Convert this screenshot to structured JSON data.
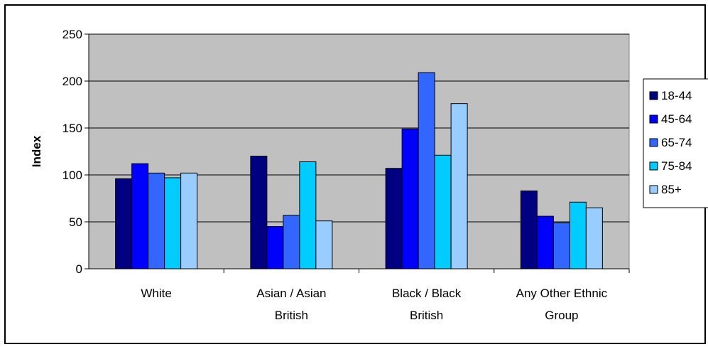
{
  "chart_data": {
    "type": "bar",
    "title": "",
    "xlabel": "",
    "ylabel": "Index",
    "ylim": [
      0,
      250
    ],
    "yticks": [
      "0",
      "50",
      "100",
      "150",
      "200",
      "250"
    ],
    "categories": [
      [
        "White"
      ],
      [
        "Asian / Asian",
        "British"
      ],
      [
        "Black / Black",
        "British"
      ],
      [
        "Any Other Ethnic",
        "Group"
      ]
    ],
    "series": [
      {
        "name": "18-44",
        "color": "#000080",
        "values": [
          96,
          120,
          107,
          83
        ]
      },
      {
        "name": "45-64",
        "color": "#0000ff",
        "values": [
          112,
          45,
          149,
          56
        ]
      },
      {
        "name": "65-74",
        "color": "#3366ff",
        "values": [
          102,
          57,
          209,
          49
        ]
      },
      {
        "name": "75-84",
        "color": "#00ccff",
        "values": [
          97,
          114,
          121,
          71
        ]
      },
      {
        "name": "85+",
        "color": "#99ccff",
        "values": [
          102,
          51,
          176,
          65
        ]
      }
    ],
    "plot_background": "#c0c0c0",
    "grid": true,
    "legend_position": "right"
  }
}
